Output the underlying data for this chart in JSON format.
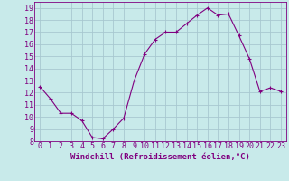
{
  "x": [
    0,
    1,
    2,
    3,
    4,
    5,
    6,
    7,
    8,
    9,
    10,
    11,
    12,
    13,
    14,
    15,
    16,
    17,
    18,
    19,
    20,
    21,
    22,
    23
  ],
  "y": [
    12.5,
    11.5,
    10.3,
    10.3,
    9.7,
    8.3,
    8.2,
    9.0,
    9.9,
    13.0,
    15.2,
    16.4,
    17.0,
    17.0,
    17.7,
    18.4,
    19.0,
    18.4,
    18.5,
    16.7,
    14.8,
    12.1,
    12.4,
    12.1
  ],
  "line_color": "#800080",
  "marker": "+",
  "bg_color": "#c8eaea",
  "grid_color": "#a8c8d0",
  "xlabel": "Windchill (Refroidissement éolien,°C)",
  "xlabel_fontsize": 6.5,
  "tick_fontsize": 6,
  "ylim": [
    8,
    19.5
  ],
  "yticks": [
    8,
    9,
    10,
    11,
    12,
    13,
    14,
    15,
    16,
    17,
    18,
    19
  ],
  "xticks": [
    0,
    1,
    2,
    3,
    4,
    5,
    6,
    7,
    8,
    9,
    10,
    11,
    12,
    13,
    14,
    15,
    16,
    17,
    18,
    19,
    20,
    21,
    22,
    23
  ]
}
